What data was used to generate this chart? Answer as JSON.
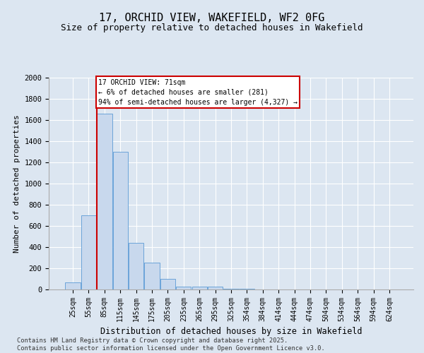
{
  "title": "17, ORCHID VIEW, WAKEFIELD, WF2 0FG",
  "subtitle": "Size of property relative to detached houses in Wakefield",
  "xlabel": "Distribution of detached houses by size in Wakefield",
  "ylabel": "Number of detached properties",
  "bar_categories": [
    "25sqm",
    "55sqm",
    "85sqm",
    "115sqm",
    "145sqm",
    "175sqm",
    "205sqm",
    "235sqm",
    "265sqm",
    "295sqm",
    "325sqm",
    "354sqm",
    "384sqm",
    "414sqm",
    "444sqm",
    "474sqm",
    "504sqm",
    "534sqm",
    "564sqm",
    "594sqm",
    "624sqm"
  ],
  "bar_values": [
    65,
    700,
    1660,
    1300,
    440,
    255,
    100,
    30,
    30,
    30,
    10,
    5,
    3,
    2,
    1,
    0,
    0,
    0,
    0,
    0,
    2
  ],
  "bar_color": "#c8d8ed",
  "bar_edge_color": "#5b9bd5",
  "background_color": "#dce6f1",
  "grid_color": "#ffffff",
  "vline_x": 1.5,
  "vline_color": "#cc0000",
  "annotation_title": "17 ORCHID VIEW: 71sqm",
  "annotation_line1": "← 6% of detached houses are smaller (281)",
  "annotation_line2": "94% of semi-detached houses are larger (4,327) →",
  "annotation_box_color": "#ffffff",
  "annotation_border_color": "#cc0000",
  "ylim": [
    0,
    2000
  ],
  "yticks": [
    0,
    200,
    400,
    600,
    800,
    1000,
    1200,
    1400,
    1600,
    1800,
    2000
  ],
  "title_fontsize": 11,
  "subtitle_fontsize": 9,
  "footnote1": "Contains HM Land Registry data © Crown copyright and database right 2025.",
  "footnote2": "Contains public sector information licensed under the Open Government Licence v3.0."
}
